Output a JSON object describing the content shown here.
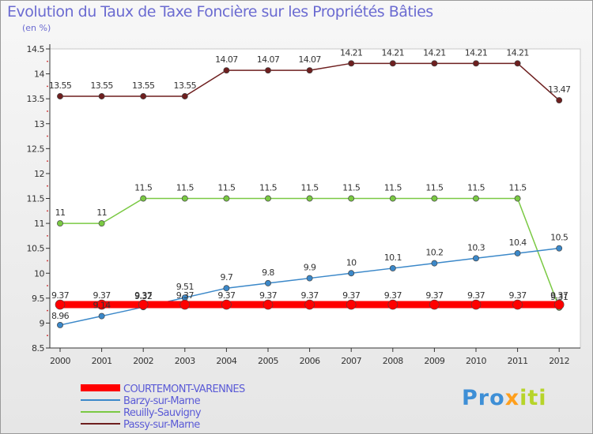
{
  "chart_data": {
    "type": "line",
    "title": "Evolution du Taux de Taxe Foncière sur les Propriétés Bâties",
    "ylabel": "(en %)",
    "xlabel": "",
    "ylim": [
      8.5,
      14.5
    ],
    "yticks": [
      8.5,
      9,
      9.5,
      10,
      10.5,
      11,
      11.5,
      12,
      12.5,
      13,
      13.5,
      14,
      14.5
    ],
    "ytick_labels": [
      "8.5",
      "9",
      "9.5",
      "10",
      "10.5",
      "11",
      "11.5",
      "12",
      "12.5",
      "13",
      "13.5",
      "14",
      "14.5"
    ],
    "categories": [
      "2000",
      "2001",
      "2002",
      "2003",
      "2004",
      "2005",
      "2006",
      "2007",
      "2008",
      "2009",
      "2010",
      "2011",
      "2012"
    ],
    "series": [
      {
        "name": "COURTEMONT-VARENNES",
        "color": "#ff0000",
        "values": [
          9.37,
          9.37,
          9.37,
          9.37,
          9.37,
          9.37,
          9.37,
          9.37,
          9.37,
          9.37,
          9.37,
          9.37,
          9.37
        ],
        "labels": [
          "9.37",
          "9.37",
          "9.37",
          "9.37",
          "9.37",
          "9.37",
          "9.37",
          "9.37",
          "9.37",
          "9.37",
          "9.37",
          "9.37",
          "9.37"
        ]
      },
      {
        "name": "Barzy-sur-Marne",
        "color": "#3b88c9",
        "values": [
          8.96,
          9.14,
          9.32,
          9.51,
          9.7,
          9.8,
          9.9,
          10,
          10.1,
          10.2,
          10.3,
          10.4,
          10.5
        ],
        "labels": [
          "8.96",
          "9.14",
          "9.32",
          "9.51",
          "9.7",
          "9.8",
          "9.9",
          "10",
          "10.1",
          "10.2",
          "10.3",
          "10.4",
          "10.5"
        ]
      },
      {
        "name": "Reuilly-Sauvigny",
        "color": "#7ac943",
        "values": [
          11,
          11,
          11.5,
          11.5,
          11.5,
          11.5,
          11.5,
          11.5,
          11.5,
          11.5,
          11.5,
          11.5,
          9.31
        ],
        "labels": [
          "11",
          "11",
          "11.5",
          "11.5",
          "11.5",
          "11.5",
          "11.5",
          "11.5",
          "11.5",
          "11.5",
          "11.5",
          "11.5",
          "9.31"
        ]
      },
      {
        "name": "Passy-sur-Marne",
        "color": "#6e1f1f",
        "values": [
          13.55,
          13.55,
          13.55,
          13.55,
          14.07,
          14.07,
          14.07,
          14.21,
          14.21,
          14.21,
          14.21,
          14.21,
          13.47
        ],
        "labels": [
          "13.55",
          "13.55",
          "13.55",
          "13.55",
          "14.07",
          "14.07",
          "14.07",
          "14.21",
          "14.21",
          "14.21",
          "14.21",
          "14.21",
          "13.47"
        ]
      }
    ],
    "legend_position": "bottom-left",
    "grid": false
  },
  "logo": {
    "letters": [
      "P",
      "r",
      "o",
      "x",
      "i",
      "t",
      "i"
    ]
  }
}
